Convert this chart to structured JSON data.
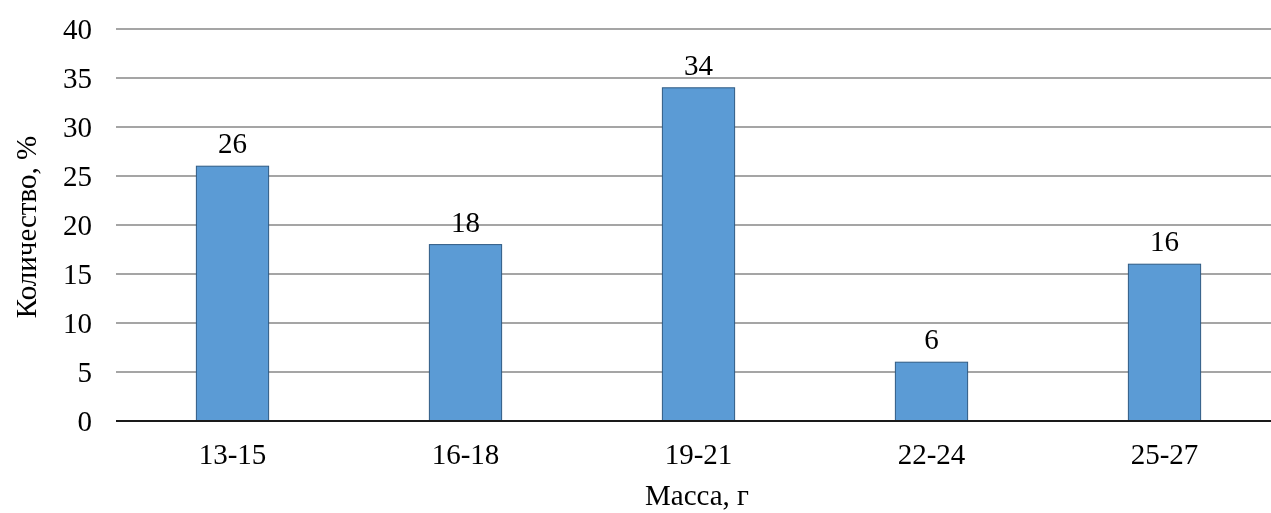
{
  "chart_data": {
    "type": "bar",
    "xlabel": "Масса, г",
    "ylabel": "Количество, %",
    "categories": [
      "13-15",
      "16-18",
      "19-21",
      "22-24",
      "25-27"
    ],
    "values": [
      26,
      18,
      34,
      6,
      16
    ],
    "color": "#5b9bd5",
    "ylim": [
      0,
      40
    ],
    "yticks": [
      0,
      5,
      10,
      15,
      20,
      25,
      30,
      35,
      40
    ],
    "grid": "y",
    "data_labels": true
  }
}
